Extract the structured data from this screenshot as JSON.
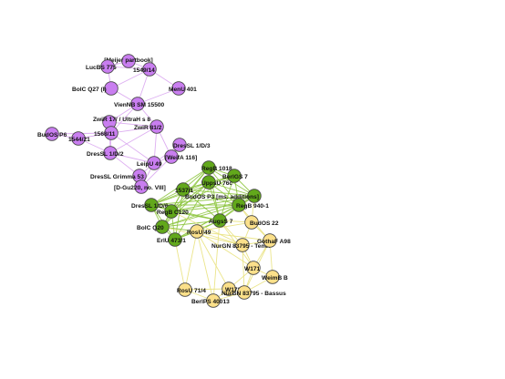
{
  "colors": {
    "purple_node": "#c97ef0",
    "purple_edge": "#d9a6ef",
    "green_node": "#62a81b",
    "green_edge": "#8cc43d",
    "yellow_node": "#fbe08a",
    "yellow_edge": "#e9e27e",
    "node_stroke": "#444444",
    "label": "#111111"
  },
  "groups": {
    "purple": {
      "nodes": [
        {
          "id": "p1",
          "label": "[Meijer partbook]"
        },
        {
          "id": "p2",
          "label": "LucBS 775"
        },
        {
          "id": "p3",
          "label": "1549/14"
        },
        {
          "id": "p4",
          "label": "BolC Q27 (I)"
        },
        {
          "id": "p5",
          "label": "MenU 401"
        },
        {
          "id": "p6",
          "label": "VienNB SM 15500"
        },
        {
          "id": "p7",
          "label": "ZwiR 17/ / UltraH s 8"
        },
        {
          "id": "p8",
          "label": "ZwiR 81/2"
        },
        {
          "id": "p9",
          "label": "1568/11"
        },
        {
          "id": "p10",
          "label": "BudOS P6"
        },
        {
          "id": "p11",
          "label": "1544/21"
        },
        {
          "id": "p12",
          "label": "DresSL 1/D/3"
        },
        {
          "id": "p13",
          "label": "DresSL 1/D/2"
        },
        {
          "id": "p14",
          "label": "[WeifA 116]"
        },
        {
          "id": "p15",
          "label": "LeipU 49"
        },
        {
          "id": "p16",
          "label": "DresSL Grimma 53"
        },
        {
          "id": "p17",
          "label": "[D-Gu220, no. VIII]"
        }
      ]
    },
    "green": {
      "nodes": [
        {
          "id": "g1",
          "label": "RegB 1018"
        },
        {
          "id": "g2",
          "label": "BerlGS 7"
        },
        {
          "id": "g3",
          "label": "1537/1"
        },
        {
          "id": "g4",
          "label": "UppsU 76c"
        },
        {
          "id": "g5",
          "label": "BudOS P3 [ms. additions]"
        },
        {
          "id": "g6",
          "label": "DresSL 1/D/6"
        },
        {
          "id": "g7",
          "label": "RegB C120"
        },
        {
          "id": "g8",
          "label": "RegB 940-1"
        },
        {
          "id": "g9",
          "label": "AugsS 7"
        },
        {
          "id": "g10",
          "label": "BolC Q20"
        },
        {
          "id": "g11",
          "label": "ErlU 473/1"
        }
      ]
    },
    "yellow": {
      "nodes": [
        {
          "id": "y1",
          "label": "BudOS 22"
        },
        {
          "id": "y2",
          "label": "RosU 49"
        },
        {
          "id": "y3",
          "label": "NurGN 83795 - Tenor"
        },
        {
          "id": "y4",
          "label": "GothaF A98"
        },
        {
          "id": "y5",
          "label": "W171"
        },
        {
          "id": "y6",
          "label": "WeimB B"
        },
        {
          "id": "y7",
          "label": "RosU 71/4"
        },
        {
          "id": "y8",
          "label": "W173"
        },
        {
          "id": "y9",
          "label": "NurGN 83795 - Bassus"
        },
        {
          "id": "y10",
          "label": "BerlPS 40013"
        }
      ]
    }
  }
}
